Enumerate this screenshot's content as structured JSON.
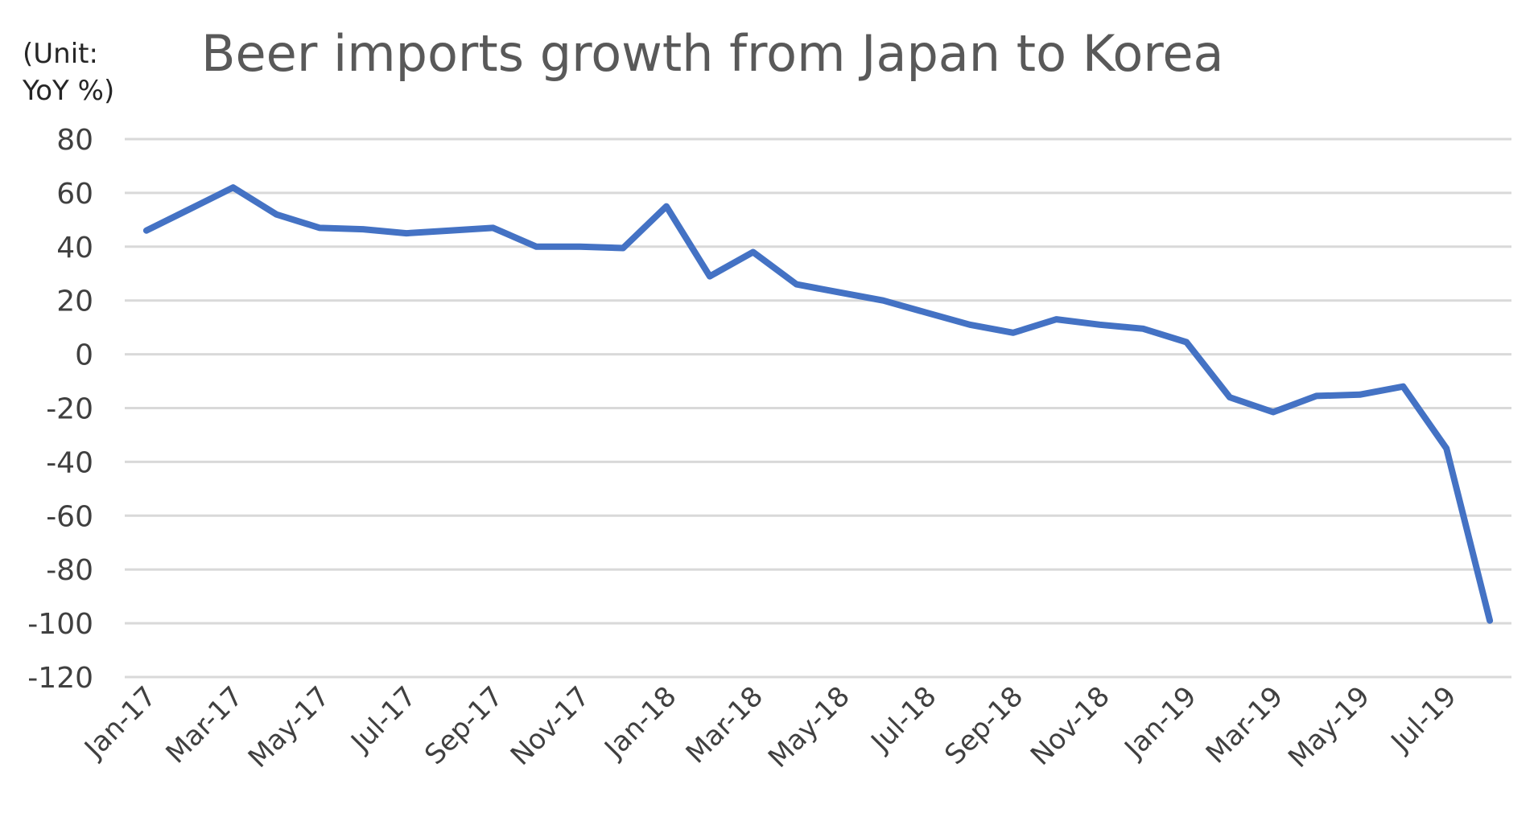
{
  "chart_data": {
    "type": "line",
    "title": "Beer imports growth from Japan to Korea",
    "unit_label": "(Unit:\nYoY %)",
    "xlabel": "",
    "ylabel": "",
    "ylim": [
      -120,
      80
    ],
    "yticks": [
      80,
      60,
      40,
      20,
      0,
      -20,
      -40,
      -60,
      -80,
      -100,
      -120
    ],
    "x_tick_labels": [
      "Jan-17",
      "Mar-17",
      "May-17",
      "Jul-17",
      "Sep-17",
      "Nov-17",
      "Jan-18",
      "Mar-18",
      "May-18",
      "Jul-18",
      "Sep-18",
      "Nov-18",
      "Jan-19",
      "Mar-19",
      "May-19",
      "Jul-19"
    ],
    "grid": true,
    "legend": "none",
    "series": [
      {
        "color": "#4472C4",
        "x": [
          "Jan-17",
          "Feb-17",
          "Mar-17",
          "Apr-17",
          "May-17",
          "Jun-17",
          "Jul-17",
          "Aug-17",
          "Sep-17",
          "Oct-17",
          "Nov-17",
          "Dec-17",
          "Jan-18",
          "Feb-18",
          "Mar-18",
          "Apr-18",
          "May-18",
          "Jun-18",
          "Jul-18",
          "Aug-18",
          "Sep-18",
          "Oct-18",
          "Nov-18",
          "Dec-18",
          "Jan-19",
          "Feb-19",
          "Mar-19",
          "Apr-19",
          "May-19",
          "Jun-19",
          "Jul-19",
          "Aug-19"
        ],
        "values": [
          46,
          54,
          62,
          52,
          47,
          46.5,
          45,
          46,
          47,
          40,
          40,
          39.5,
          55,
          29,
          38,
          26,
          23,
          20,
          15.5,
          11,
          8,
          13,
          11,
          9.5,
          4.5,
          -16,
          -21.5,
          -15.5,
          -15,
          -12,
          -35,
          -99
        ]
      }
    ]
  }
}
